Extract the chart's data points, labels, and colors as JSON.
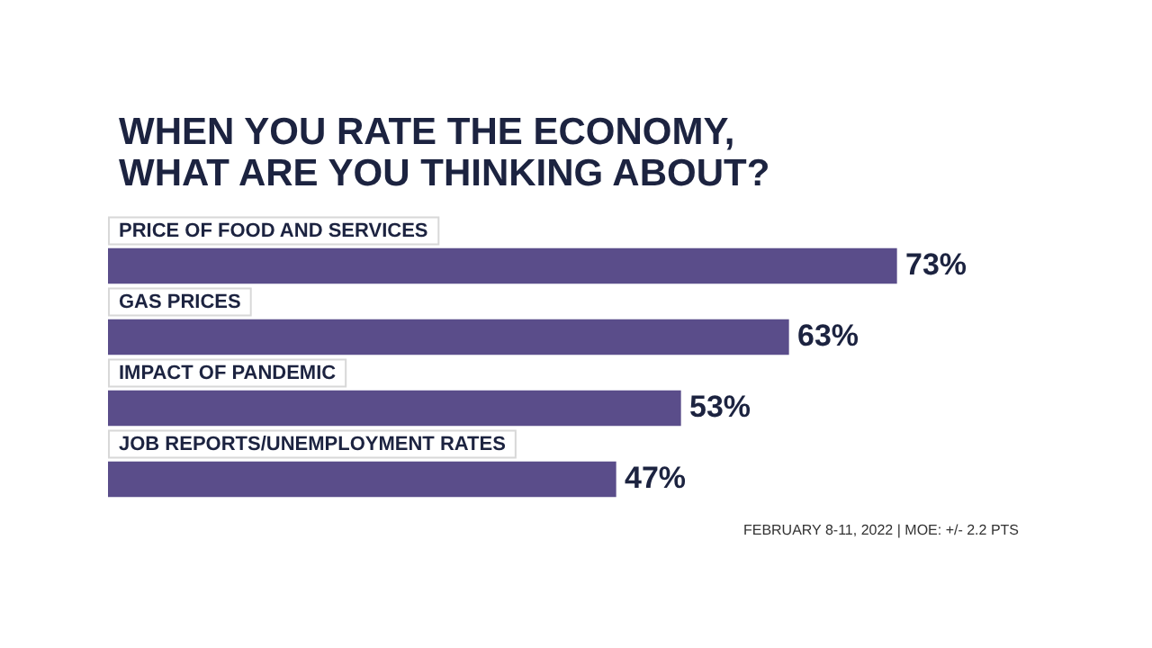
{
  "chart_data": {
    "type": "bar",
    "orientation": "horizontal",
    "title": "WHEN YOU RATE THE ECONOMY, WHAT ARE YOU THINKING ABOUT?",
    "categories": [
      "PRICE OF FOOD AND SERVICES",
      "GAS PRICES",
      "IMPACT OF PANDEMIC",
      "JOB REPORTS/UNEMPLOYMENT RATES"
    ],
    "values": [
      73,
      63,
      53,
      47
    ],
    "value_labels": [
      "73%",
      "63%",
      "53%",
      "47%"
    ],
    "color": "#5a4d8a",
    "legend": false,
    "annotations": [
      "FEBRUARY 8-11, 2022 | MOE: +/- 2.2 PTS"
    ]
  }
}
